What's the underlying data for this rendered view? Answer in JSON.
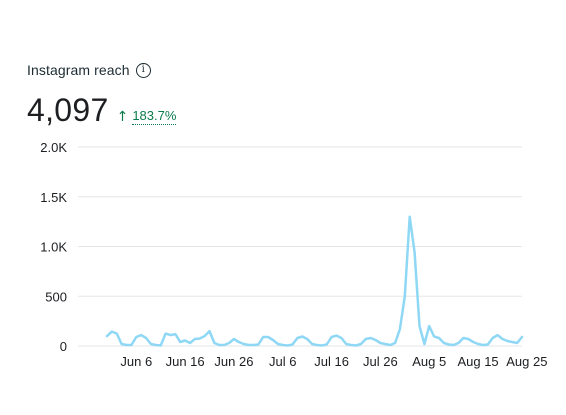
{
  "header": {
    "title": "Instagram reach",
    "info_icon": "info-icon"
  },
  "metric": {
    "value": "4,097",
    "change": "183.7%",
    "change_direction_icon": "arrow-up-icon",
    "change_color": "#0a7c4c"
  },
  "chart_data": {
    "type": "line",
    "title": "",
    "xlabel": "",
    "ylabel": "",
    "ylim": [
      0,
      2000
    ],
    "grid": true,
    "line_color": "#8fd8f5",
    "y_ticks": [
      {
        "value": 2000,
        "label": "2.0K"
      },
      {
        "value": 1500,
        "label": "1.5K"
      },
      {
        "value": 1000,
        "label": "1.0K"
      },
      {
        "value": 500,
        "label": "500"
      },
      {
        "value": 0,
        "label": "0"
      }
    ],
    "x_ticks": [
      {
        "index": 6,
        "label": "Jun 6"
      },
      {
        "index": 16,
        "label": "Jun 16"
      },
      {
        "index": 26,
        "label": "Jun 26"
      },
      {
        "index": 36,
        "label": "Jul 6"
      },
      {
        "index": 46,
        "label": "Jul 16"
      },
      {
        "index": 56,
        "label": "Jul 26"
      },
      {
        "index": 66,
        "label": "Aug 5"
      },
      {
        "index": 76,
        "label": "Aug 15"
      },
      {
        "index": 86,
        "label": "Aug 25"
      }
    ],
    "series": [
      {
        "values": [
          100,
          145,
          125,
          20,
          10,
          10,
          90,
          110,
          80,
          20,
          10,
          5,
          125,
          110,
          120,
          40,
          55,
          30,
          70,
          75,
          100,
          150,
          30,
          10,
          10,
          30,
          70,
          40,
          20,
          10,
          10,
          15,
          90,
          90,
          60,
          20,
          10,
          5,
          15,
          80,
          95,
          70,
          20,
          10,
          5,
          15,
          90,
          105,
          80,
          20,
          10,
          5,
          20,
          70,
          80,
          60,
          30,
          20,
          10,
          30,
          170,
          500,
          1300,
          940,
          200,
          20,
          200,
          95,
          80,
          30,
          15,
          10,
          30,
          80,
          70,
          40,
          20,
          10,
          15,
          80,
          110,
          70,
          50,
          40,
          30,
          90
        ]
      }
    ]
  }
}
